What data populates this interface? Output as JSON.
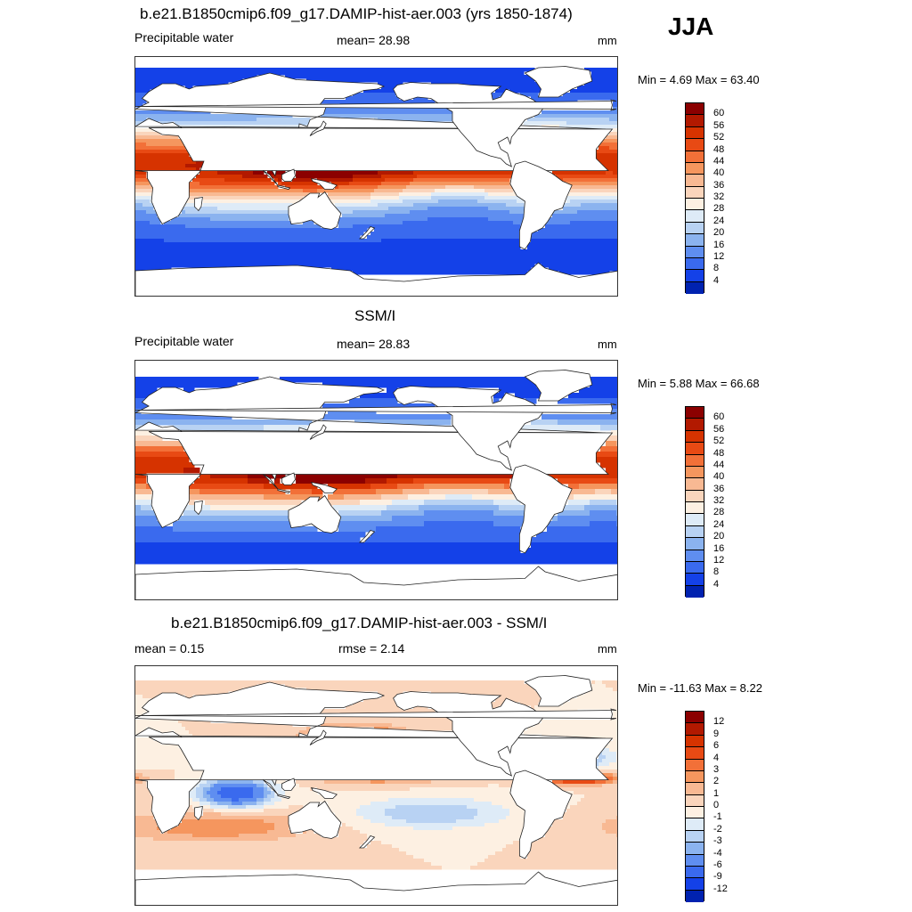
{
  "season": "JJA",
  "panels": [
    {
      "title": "b.e21.B1850cmip6.f09_g17.DAMIP-hist-aer.003 (yrs 1850-1874)",
      "left_label": "Precipitable water",
      "center_label": "mean=  28.98",
      "units": "mm",
      "minmax": "Min =   4.69 Max =  63.40",
      "field": "model_pw"
    },
    {
      "title": "SSM/I",
      "left_label": "Precipitable water",
      "center_label": "mean=  28.83",
      "units": "mm",
      "minmax": "Min =   5.88 Max =  66.68",
      "field": "obs_pw"
    },
    {
      "title": "b.e21.B1850cmip6.f09_g17.DAMIP-hist-aer.003 - SSM/I",
      "left_label": "mean =   0.15",
      "center_label": "rmse =   2.14",
      "units": "mm",
      "minmax": "Min = -11.63 Max =   8.22",
      "field": "difference"
    }
  ],
  "colorbars": {
    "pw": {
      "labels": [
        "60",
        "56",
        "52",
        "48",
        "44",
        "40",
        "36",
        "32",
        "28",
        "24",
        "20",
        "16",
        "12",
        "8",
        "4"
      ],
      "colors": [
        "#8b0000",
        "#b21900",
        "#d63300",
        "#e84a14",
        "#f27038",
        "#f5965e",
        "#f8b993",
        "#fad5bc",
        "#fdf0e2",
        "#deebf7",
        "#b8d2f3",
        "#8bb3ef",
        "#5f8ef0",
        "#3a6aee",
        "#1441e8",
        "#0022b0"
      ]
    },
    "diff": {
      "labels": [
        "12",
        "9",
        "6",
        "4",
        "3",
        "2",
        "1",
        "0",
        "-1",
        "-2",
        "-3",
        "-4",
        "-6",
        "-9",
        "-12"
      ],
      "colors": [
        "#8b0000",
        "#b21900",
        "#d63300",
        "#e84a14",
        "#f27038",
        "#f5965e",
        "#f8b993",
        "#fad5bc",
        "#fdf0e2",
        "#deebf7",
        "#b8d2f3",
        "#8bb3ef",
        "#5f8ef0",
        "#3a6aee",
        "#1441e8",
        "#0022b0"
      ]
    }
  }
}
